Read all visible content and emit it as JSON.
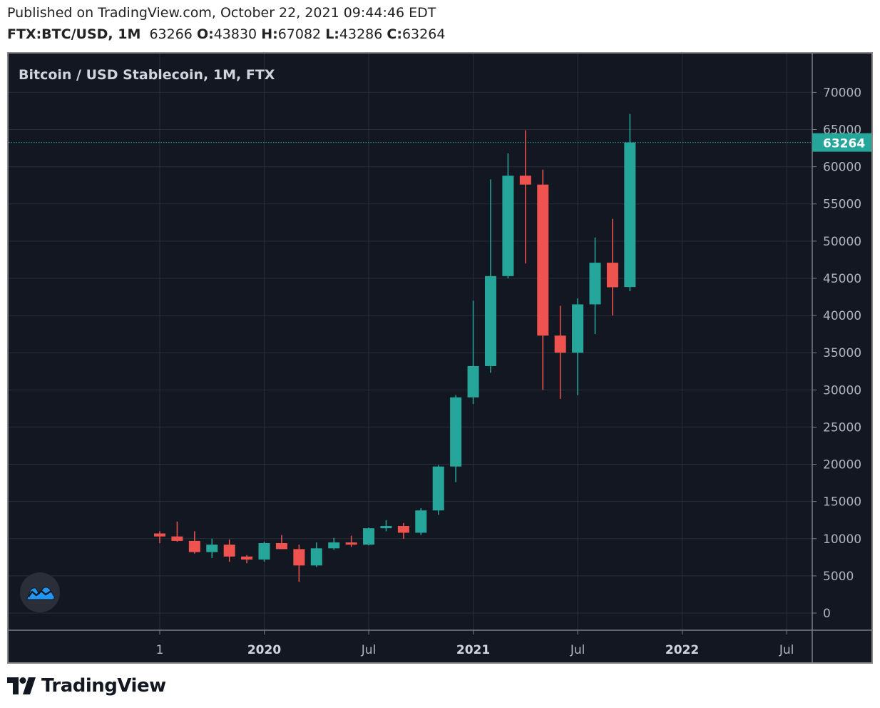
{
  "header": {
    "published": "Published on TradingView.com, October 22, 2021 09:44:46 EDT",
    "symbol": "FTX:BTC/USD, 1M",
    "last": "63266",
    "o_label": "O:",
    "o_value": "43830",
    "h_label": "H:",
    "h_value": "67082",
    "l_label": "L:",
    "l_value": "43286",
    "c_label": "C:",
    "c_value": "63264"
  },
  "footer": {
    "brand": "TradingView"
  },
  "chart_data": {
    "type": "candlestick",
    "title": "Bitcoin / USD Stablecoin, 1M, FTX",
    "interval": "1M",
    "ylim": [
      -2000,
      72000
    ],
    "y_ticks": [
      0,
      5000,
      10000,
      15000,
      20000,
      25000,
      30000,
      35000,
      40000,
      45000,
      50000,
      55000,
      60000,
      65000,
      70000
    ],
    "x_ticks": [
      {
        "label": "1",
        "month": "2019-07",
        "bold": false
      },
      {
        "label": "2020",
        "month": "2020-01",
        "bold": true
      },
      {
        "label": "Jul",
        "month": "2020-07",
        "bold": false
      },
      {
        "label": "2021",
        "month": "2021-01",
        "bold": true
      },
      {
        "label": "Jul",
        "month": "2021-07",
        "bold": false
      },
      {
        "label": "2022",
        "month": "2022-01",
        "bold": true
      },
      {
        "label": "Jul",
        "month": "2022-07",
        "bold": false
      }
    ],
    "last_price": 63264,
    "grid": true,
    "colors": {
      "up": "#26a69a",
      "down": "#ef5350",
      "background": "#131722",
      "grid": "#2a2e39",
      "axis_text": "#b2b5be",
      "price_line": "#26a69a"
    },
    "candles": [
      {
        "month": "2019-07",
        "o": 10700,
        "h": 11000,
        "l": 9400,
        "c": 10300
      },
      {
        "month": "2019-08",
        "o": 10300,
        "h": 12300,
        "l": 9600,
        "c": 9700
      },
      {
        "month": "2019-09",
        "o": 9700,
        "h": 11000,
        "l": 8000,
        "c": 8200
      },
      {
        "month": "2019-10",
        "o": 8200,
        "h": 10000,
        "l": 7400,
        "c": 9200
      },
      {
        "month": "2019-11",
        "o": 9200,
        "h": 9900,
        "l": 6900,
        "c": 7600
      },
      {
        "month": "2019-12",
        "o": 7600,
        "h": 7800,
        "l": 6700,
        "c": 7200
      },
      {
        "month": "2020-01",
        "o": 7200,
        "h": 9600,
        "l": 6900,
        "c": 9400
      },
      {
        "month": "2020-02",
        "o": 9400,
        "h": 10500,
        "l": 8600,
        "c": 8600
      },
      {
        "month": "2020-03",
        "o": 8600,
        "h": 9200,
        "l": 4200,
        "c": 6400
      },
      {
        "month": "2020-04",
        "o": 6400,
        "h": 9500,
        "l": 6200,
        "c": 8700
      },
      {
        "month": "2020-05",
        "o": 8700,
        "h": 10100,
        "l": 8500,
        "c": 9500
      },
      {
        "month": "2020-06",
        "o": 9500,
        "h": 10400,
        "l": 8900,
        "c": 9200
      },
      {
        "month": "2020-07",
        "o": 9200,
        "h": 11500,
        "l": 9100,
        "c": 11400
      },
      {
        "month": "2020-08",
        "o": 11400,
        "h": 12500,
        "l": 11000,
        "c": 11700
      },
      {
        "month": "2020-09",
        "o": 11700,
        "h": 12100,
        "l": 10000,
        "c": 10800
      },
      {
        "month": "2020-10",
        "o": 10800,
        "h": 14100,
        "l": 10500,
        "c": 13800
      },
      {
        "month": "2020-11",
        "o": 13800,
        "h": 19900,
        "l": 13200,
        "c": 19700
      },
      {
        "month": "2020-12",
        "o": 19700,
        "h": 29300,
        "l": 17600,
        "c": 29000
      },
      {
        "month": "2021-01",
        "o": 29000,
        "h": 42000,
        "l": 28100,
        "c": 33200
      },
      {
        "month": "2021-02",
        "o": 33200,
        "h": 58300,
        "l": 32300,
        "c": 45300
      },
      {
        "month": "2021-03",
        "o": 45300,
        "h": 61800,
        "l": 45000,
        "c": 58800
      },
      {
        "month": "2021-04",
        "o": 58800,
        "h": 64900,
        "l": 47000,
        "c": 57600
      },
      {
        "month": "2021-05",
        "o": 57600,
        "h": 59600,
        "l": 30000,
        "c": 37300
      },
      {
        "month": "2021-06",
        "o": 37300,
        "h": 41300,
        "l": 28800,
        "c": 35000
      },
      {
        "month": "2021-07",
        "o": 35000,
        "h": 42300,
        "l": 29300,
        "c": 41500
      },
      {
        "month": "2021-08",
        "o": 41500,
        "h": 50500,
        "l": 37500,
        "c": 47100
      },
      {
        "month": "2021-09",
        "o": 47100,
        "h": 53000,
        "l": 40000,
        "c": 43800
      },
      {
        "month": "2021-10",
        "o": 43830,
        "h": 67082,
        "l": 43286,
        "c": 63264
      }
    ]
  }
}
